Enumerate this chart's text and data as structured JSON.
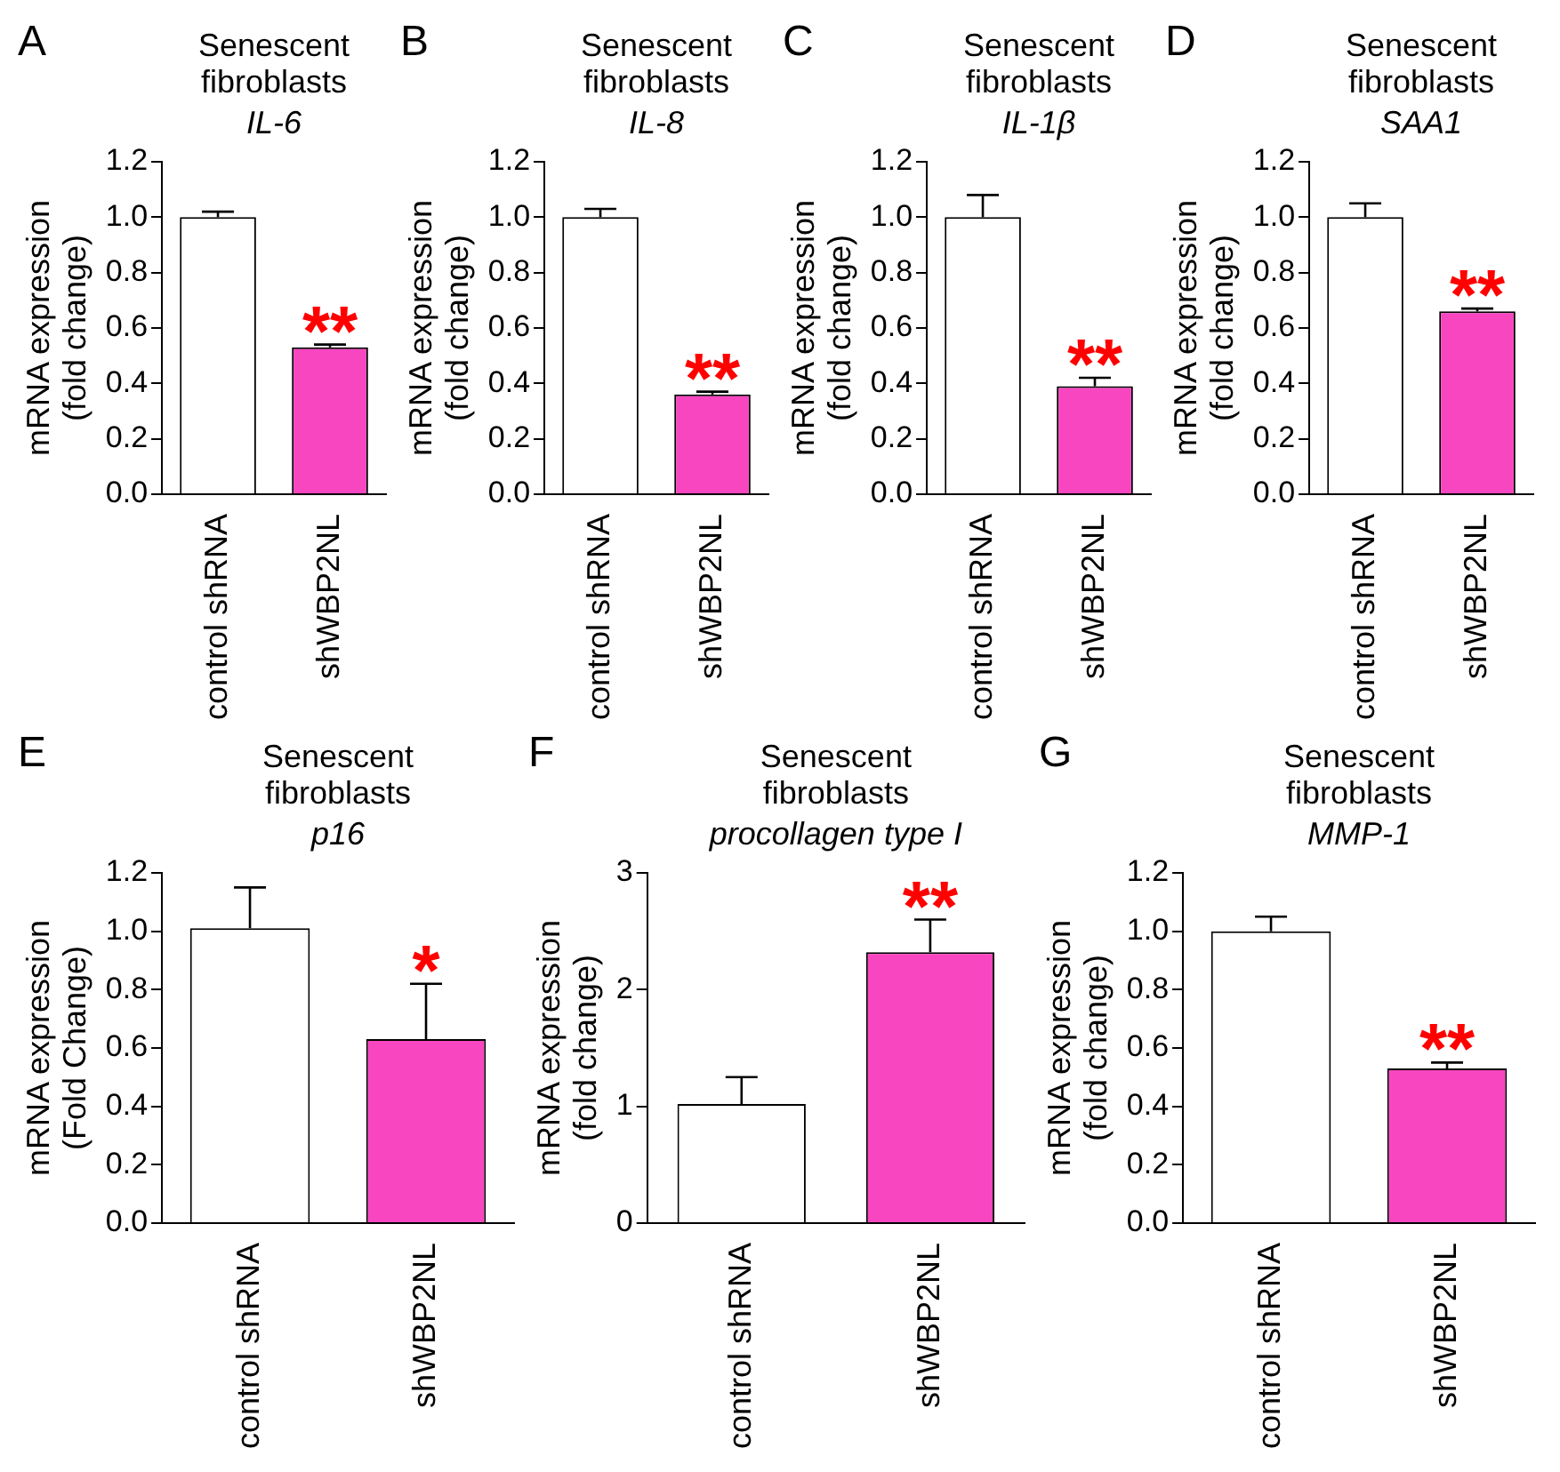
{
  "chart_data": [
    {
      "type": "bar",
      "title": "Senescent fibroblasts",
      "subtitle": "IL-6",
      "ylabel": "mRNA expression (fold change)",
      "categories": [
        "control shRNA",
        "shWBP2NL"
      ],
      "values": [
        1.0,
        0.53
      ],
      "errors": [
        0.02,
        0.01
      ],
      "colors": [
        "#ffffff",
        "#f845c0"
      ],
      "ylim": [
        0,
        1.2
      ],
      "yticks": [
        {
          "value": 0,
          "label": "0.0"
        },
        {
          "value": 0.2,
          "label": "0.2"
        },
        {
          "value": 0.4,
          "label": "0.4"
        },
        {
          "value": 0.6,
          "label": "0.6"
        },
        {
          "value": 0.8,
          "label": "0.8"
        },
        {
          "value": 1,
          "label": "1.0"
        },
        {
          "value": 1.2,
          "label": "1.2"
        }
      ],
      "annotations": [
        "A",
        "**"
      ]
    },
    {
      "type": "bar",
      "title": "Senescent fibroblasts",
      "subtitle": "IL-8",
      "ylabel": "mRNA expression (fold change)",
      "categories": [
        "control shRNA",
        "shWBP2NL"
      ],
      "values": [
        1.0,
        0.36
      ],
      "errors": [
        0.03,
        0.01
      ],
      "colors": [
        "#ffffff",
        "#f845c0"
      ],
      "ylim": [
        0,
        1.2
      ],
      "yticks": [
        {
          "value": 0,
          "label": "0.0"
        },
        {
          "value": 0.2,
          "label": "0.2"
        },
        {
          "value": 0.4,
          "label": "0.4"
        },
        {
          "value": 0.6,
          "label": "0.6"
        },
        {
          "value": 0.8,
          "label": "0.8"
        },
        {
          "value": 1,
          "label": "1.0"
        },
        {
          "value": 1.2,
          "label": "1.2"
        }
      ],
      "annotations": [
        "B",
        "**"
      ]
    },
    {
      "type": "bar",
      "title": "Senescent fibroblasts",
      "subtitle": "IL-1β",
      "ylabel": "mRNA expression (fold change)",
      "categories": [
        "control shRNA",
        "shWBP2NL"
      ],
      "values": [
        1.0,
        0.39
      ],
      "errors": [
        0.08,
        0.03
      ],
      "colors": [
        "#ffffff",
        "#f845c0"
      ],
      "ylim": [
        0,
        1.2
      ],
      "yticks": [
        {
          "value": 0,
          "label": "0.0"
        },
        {
          "value": 0.2,
          "label": "0.2"
        },
        {
          "value": 0.4,
          "label": "0.4"
        },
        {
          "value": 0.6,
          "label": "0.6"
        },
        {
          "value": 0.8,
          "label": "0.8"
        },
        {
          "value": 1,
          "label": "1.0"
        },
        {
          "value": 1.2,
          "label": "1.2"
        }
      ],
      "annotations": [
        "C",
        "**"
      ]
    },
    {
      "type": "bar",
      "title": "Senescent fibroblasts",
      "subtitle": "SAA1",
      "ylabel": "mRNA expression (fold change)",
      "categories": [
        "control shRNA",
        "shWBP2NL"
      ],
      "values": [
        1.0,
        0.66
      ],
      "errors": [
        0.05,
        0.01
      ],
      "colors": [
        "#ffffff",
        "#f845c0"
      ],
      "ylim": [
        0,
        1.2
      ],
      "yticks": [
        {
          "value": 0,
          "label": "0.0"
        },
        {
          "value": 0.2,
          "label": "0.2"
        },
        {
          "value": 0.4,
          "label": "0.4"
        },
        {
          "value": 0.6,
          "label": "0.6"
        },
        {
          "value": 0.8,
          "label": "0.8"
        },
        {
          "value": 1,
          "label": "1.0"
        },
        {
          "value": 1.2,
          "label": "1.2"
        }
      ],
      "annotations": [
        "D",
        "**"
      ]
    },
    {
      "type": "bar",
      "title": "Senescent fibroblasts",
      "subtitle": "p16",
      "ylabel": "mRNA expression (Fold Change)",
      "categories": [
        "control shRNA",
        "shWBP2NL"
      ],
      "values": [
        1.01,
        0.63
      ],
      "errors": [
        0.14,
        0.19
      ],
      "colors": [
        "#ffffff",
        "#f845c0"
      ],
      "ylim": [
        0,
        1.2
      ],
      "yticks": [
        {
          "value": 0,
          "label": "0.0"
        },
        {
          "value": 0.2,
          "label": "0.2"
        },
        {
          "value": 0.4,
          "label": "0.4"
        },
        {
          "value": 0.6,
          "label": "0.6"
        },
        {
          "value": 0.8,
          "label": "0.8"
        },
        {
          "value": 1,
          "label": "1.0"
        },
        {
          "value": 1.2,
          "label": "1.2"
        }
      ],
      "annotations": [
        "E",
        "*"
      ]
    },
    {
      "type": "bar",
      "title": "Senescent fibroblasts",
      "subtitle": "procollagen type I",
      "ylabel": "mRNA expression (fold change)",
      "categories": [
        "control shRNA",
        "shWBP2NL"
      ],
      "values": [
        1.02,
        2.32
      ],
      "errors": [
        0.23,
        0.28
      ],
      "colors": [
        "#ffffff",
        "#f845c0"
      ],
      "ylim": [
        0,
        3
      ],
      "yticks": [
        0,
        1,
        2,
        3
      ],
      "annotations": [
        "F",
        "**"
      ]
    },
    {
      "type": "bar",
      "title": "Senescent fibroblasts",
      "subtitle": "MMP-1",
      "ylabel": "mRNA expression (fold change)",
      "categories": [
        "control shRNA",
        "shWBP2NL"
      ],
      "values": [
        1.0,
        0.53
      ],
      "errors": [
        0.05,
        0.02
      ],
      "colors": [
        "#ffffff",
        "#f845c0"
      ],
      "ylim": [
        0,
        1.2
      ],
      "yticks": [
        {
          "value": 0,
          "label": "0.0"
        },
        {
          "value": 0.2,
          "label": "0.2"
        },
        {
          "value": 0.4,
          "label": "0.4"
        },
        {
          "value": 0.6,
          "label": "0.6"
        },
        {
          "value": 0.8,
          "label": "0.8"
        },
        {
          "value": 1,
          "label": "1.0"
        },
        {
          "value": 1.2,
          "label": "1.2"
        }
      ],
      "annotations": [
        "G",
        "**"
      ]
    }
  ]
}
